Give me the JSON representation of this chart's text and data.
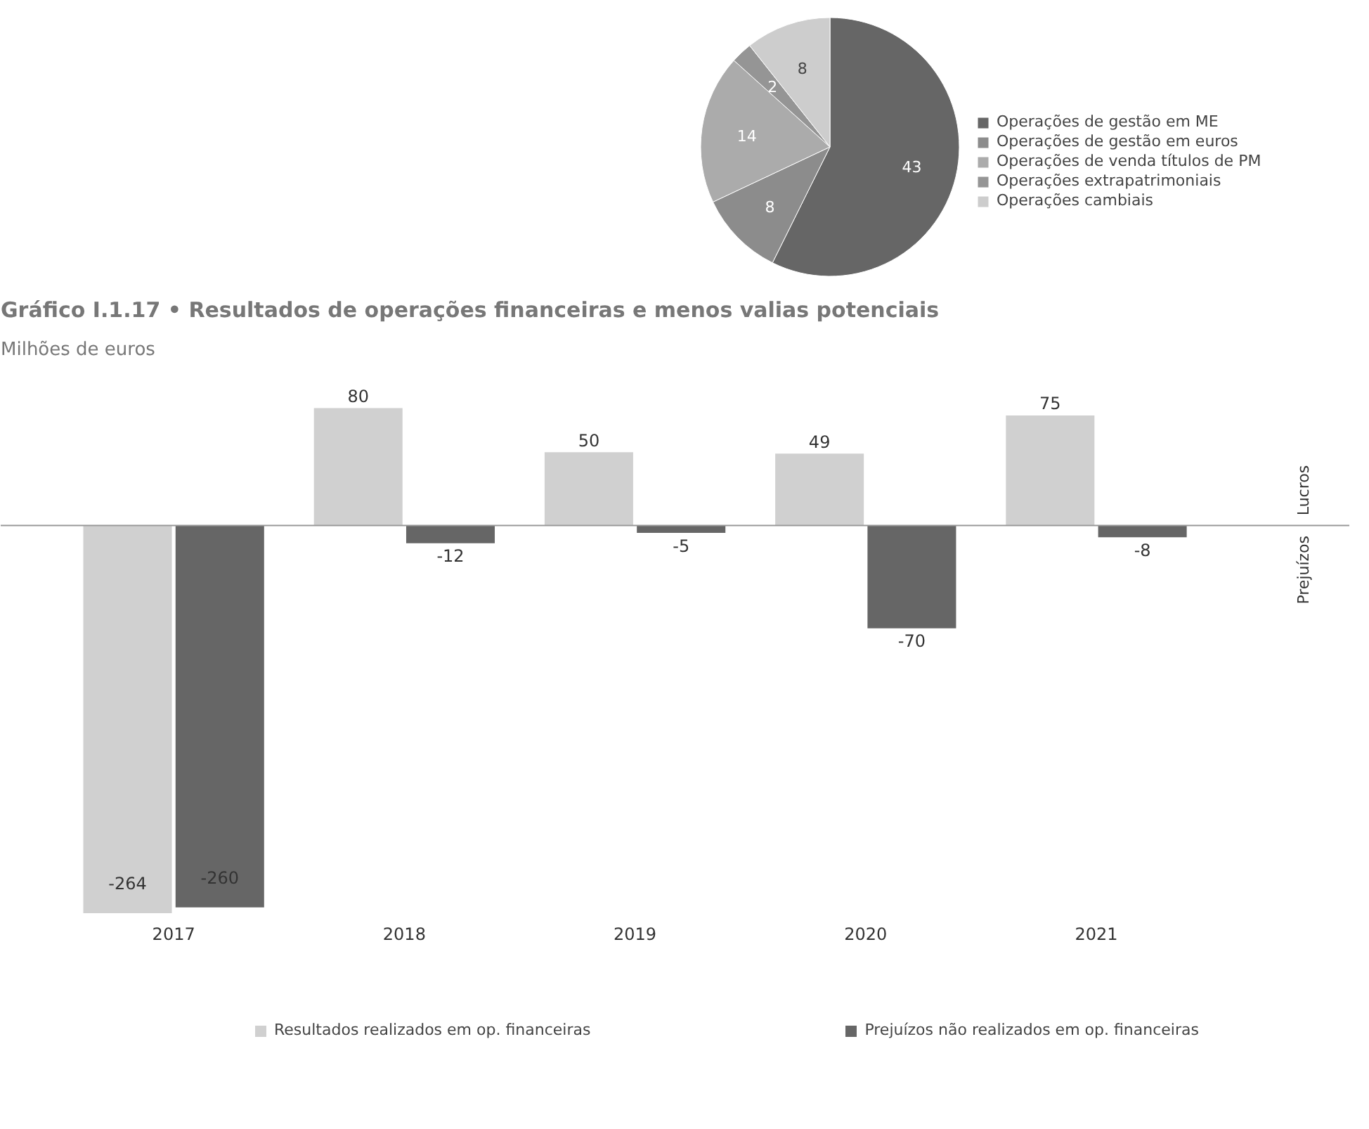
{
  "chart_data": [
    {
      "type": "pie",
      "categories": [
        "Operações de gestão em ME",
        "Operações de gestão em euros",
        "Operações de venda títulos de PM",
        "Operações extrapatrimoniais",
        "Operações cambiais"
      ],
      "values": [
        43,
        8,
        14,
        2,
        8
      ],
      "colors": [
        "#666666",
        "#8c8c8c",
        "#ababab",
        "#959595",
        "#cdcdcd"
      ],
      "data_labels": true,
      "legend": "right"
    },
    {
      "type": "bar",
      "title": "Gráfico I.1.17 • Resultados de operações financeiras e menos valias potenciais",
      "subtitle": "Milhões de euros",
      "categories": [
        "2017",
        "2018",
        "2019",
        "2020",
        "2021"
      ],
      "series": [
        {
          "name": "Resultados realizados em op. financeiras",
          "color": "#d0d0d0",
          "values": [
            -264,
            80,
            50,
            49,
            75
          ]
        },
        {
          "name": "Prejuízos não realizados em op. financeiras",
          "color": "#666666",
          "values": [
            -260,
            -12,
            -5,
            -70,
            -8
          ]
        }
      ],
      "data_labels": true,
      "legend": "bottom",
      "annotations": [
        "Lucros",
        "Prejuízos"
      ]
    }
  ]
}
